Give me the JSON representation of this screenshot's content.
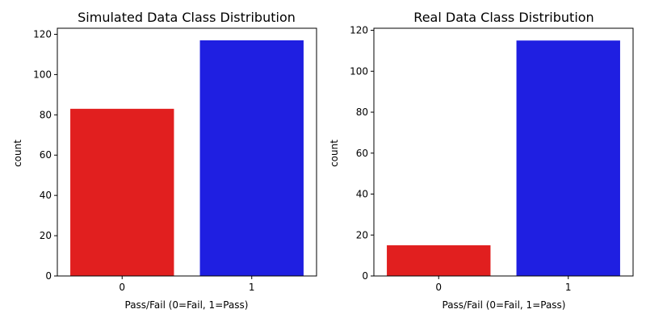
{
  "chart_data": [
    {
      "type": "bar",
      "title": "Simulated Data Class Distribution",
      "xlabel": "Pass/Fail (0=Fail, 1=Pass)",
      "ylabel": "count",
      "categories": [
        "0",
        "1"
      ],
      "values": [
        83,
        117
      ],
      "colors": [
        "#e11f1f",
        "#1f1fe1"
      ],
      "ylim": [
        0,
        123
      ],
      "yticks": [
        "0",
        "20",
        "40",
        "60",
        "80",
        "100",
        "120"
      ],
      "grid": false
    },
    {
      "type": "bar",
      "title": "Real Data Class Distribution",
      "xlabel": "Pass/Fail (0=Fail, 1=Pass)",
      "ylabel": "count",
      "categories": [
        "0",
        "1"
      ],
      "values": [
        15,
        115
      ],
      "colors": [
        "#e11f1f",
        "#1f1fe1"
      ],
      "ylim": [
        0,
        121
      ],
      "yticks": [
        "0",
        "20",
        "40",
        "60",
        "80",
        "100",
        "120"
      ],
      "grid": false
    }
  ]
}
